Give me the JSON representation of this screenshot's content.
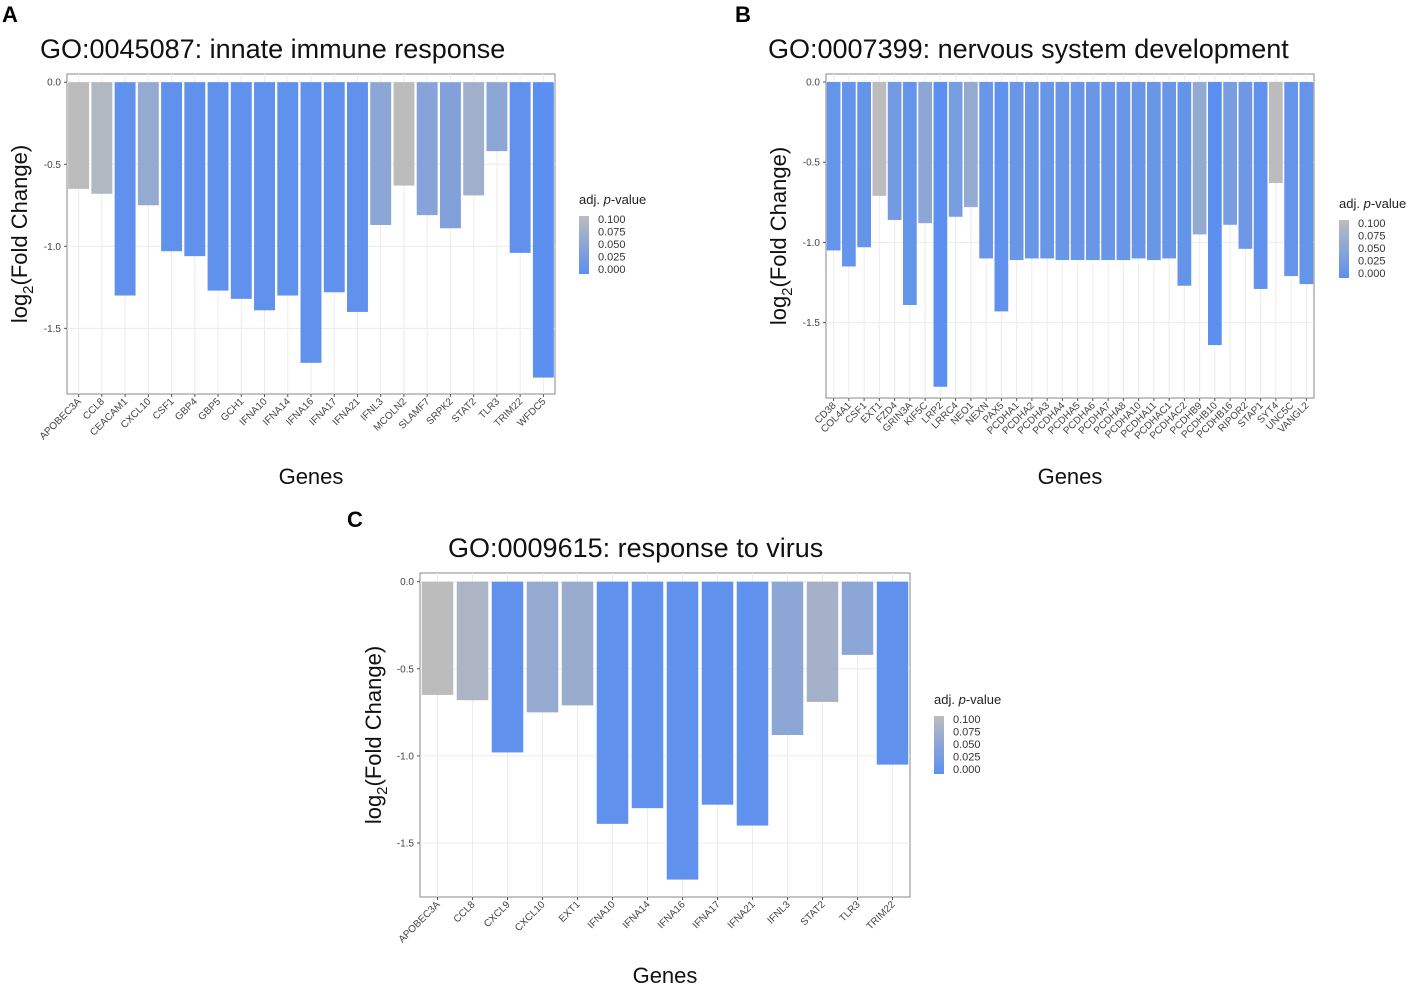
{
  "figure": {
    "legend": {
      "title_prefix": "adj. ",
      "title_italic": "p",
      "title_suffix": "-value",
      "labels": [
        "0.100",
        "0.075",
        "0.050",
        "0.025",
        "0.000"
      ],
      "colors": {
        "low": "#5b8ff0",
        "high": "#bcbcbc"
      }
    }
  },
  "chart_data": [
    {
      "panel": "A",
      "type": "bar",
      "title": "GO:0045087: innate immune response",
      "xlabel": "Genes",
      "ylabel_main": "log",
      "ylabel_sub": "2",
      "ylabel_rest": "(Fold Change)",
      "ylim": [
        -1.9,
        0.05
      ],
      "yticks": [
        0.0,
        -0.5,
        -1.0,
        -1.5
      ],
      "ytick_labels": [
        "0.0",
        "-0.5",
        "-1.0",
        "-1.5"
      ],
      "categories": [
        "APOBEC3A",
        "CCL8",
        "CEACAM1",
        "CXCL10",
        "CSF1",
        "GBP4",
        "GBP5",
        "GCH1",
        "IFNA10",
        "IFNA14",
        "IFNA16",
        "IFNA17",
        "IFNA21",
        "IFNL3",
        "MCOLN2",
        "SLAMF7",
        "SRPK2",
        "STAT2",
        "TLR3",
        "TRIM22",
        "WFDC5"
      ],
      "values": [
        -0.65,
        -0.68,
        -1.3,
        -0.75,
        -1.03,
        -1.06,
        -1.27,
        -1.32,
        -1.39,
        -1.3,
        -1.71,
        -1.28,
        -1.4,
        -0.87,
        -0.63,
        -0.81,
        -0.89,
        -0.69,
        -0.42,
        -1.04,
        -1.8
      ],
      "padj": [
        0.1,
        0.09,
        0.005,
        0.06,
        0.005,
        0.005,
        0.005,
        0.005,
        0.005,
        0.005,
        0.005,
        0.005,
        0.005,
        0.05,
        0.1,
        0.045,
        0.04,
        0.07,
        0.05,
        0.005,
        0.0
      ]
    },
    {
      "panel": "B",
      "type": "bar",
      "title": "GO:0007399: nervous system development",
      "xlabel": "Genes",
      "ylabel_main": "log",
      "ylabel_sub": "2",
      "ylabel_rest": "(Fold Change)",
      "ylim": [
        -1.97,
        0.05
      ],
      "yticks": [
        0.0,
        -0.5,
        -1.0,
        -1.5
      ],
      "ytick_labels": [
        "0.0",
        "-0.5",
        "-1.0",
        "-1.5"
      ],
      "categories": [
        "CD38",
        "COL4A1",
        "CSF1",
        "EXT1",
        "FZD4",
        "GRIN3A",
        "KIF5C",
        "LRP2",
        "LRRC4",
        "NEO1",
        "NEXN",
        "PAX5",
        "PCDHA1",
        "PCDHA2",
        "PCDHA3",
        "PCDHA4",
        "PCDHA5",
        "PCDHA6",
        "PCDHA7",
        "PCDHA8",
        "PCDHA10",
        "PCDHA11",
        "PCDHAC1",
        "PCDHAC2",
        "PCDHB9",
        "PCDHB10",
        "PCDHB16",
        "RIPOR2",
        "STAP1",
        "SYT4",
        "UNC5C",
        "VANGL2"
      ],
      "values": [
        -1.05,
        -1.15,
        -1.03,
        -0.71,
        -0.86,
        -1.39,
        -0.88,
        -1.9,
        -0.84,
        -0.78,
        -1.1,
        -1.43,
        -1.11,
        -1.1,
        -1.1,
        -1.11,
        -1.11,
        -1.11,
        -1.11,
        -1.11,
        -1.1,
        -1.11,
        -1.1,
        -1.27,
        -0.95,
        -1.64,
        -0.89,
        -1.04,
        -1.29,
        -0.63,
        -1.21,
        -1.26
      ],
      "padj": [
        0.01,
        0.01,
        0.01,
        0.1,
        0.025,
        0.01,
        0.05,
        0.0,
        0.03,
        0.06,
        0.015,
        0.005,
        0.015,
        0.015,
        0.015,
        0.015,
        0.015,
        0.015,
        0.015,
        0.015,
        0.015,
        0.015,
        0.015,
        0.01,
        0.06,
        0.0,
        0.03,
        0.02,
        0.005,
        0.1,
        0.01,
        0.01
      ]
    },
    {
      "panel": "C",
      "type": "bar",
      "title": "GO:0009615: response to virus",
      "xlabel": "Genes",
      "ylabel_main": "log",
      "ylabel_sub": "2",
      "ylabel_rest": "(Fold Change)",
      "ylim": [
        -1.81,
        0.05
      ],
      "yticks": [
        0.0,
        -0.5,
        -1.0,
        -1.5
      ],
      "ytick_labels": [
        "0.0",
        "-0.5",
        "-1.0",
        "-1.5"
      ],
      "categories": [
        "APOBEC3A",
        "CCL8",
        "CXCL9",
        "CXCL10",
        "EXT1",
        "IFNA10",
        "IFNA14",
        "IFNA16",
        "IFNA17",
        "IFNA21",
        "IFNL3",
        "STAT2",
        "TLR3",
        "TRIM22"
      ],
      "values": [
        -0.65,
        -0.68,
        -0.98,
        -0.75,
        -0.71,
        -1.39,
        -1.3,
        -1.71,
        -1.28,
        -1.4,
        -0.88,
        -0.69,
        -0.42,
        -1.05
      ],
      "padj": [
        0.1,
        0.085,
        0.005,
        0.06,
        0.065,
        0.005,
        0.005,
        0.005,
        0.005,
        0.005,
        0.05,
        0.075,
        0.05,
        0.005
      ]
    }
  ]
}
